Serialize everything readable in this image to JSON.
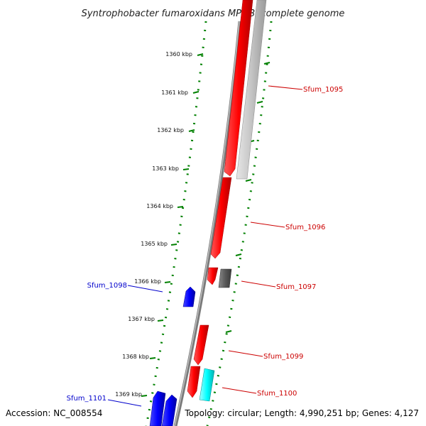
{
  "title": "Syntrophobacter fumaroxidans MPOB, complete genome",
  "footer": {
    "accession": "Accession: NC_008554",
    "topology": "Topology: circular; Length: 4,990,251 bp; Genes: 4,127"
  },
  "colors": {
    "forward_red": "#ff0000",
    "forward_blue": "#0000ff",
    "gray_gene": "#c8c8c8",
    "dark_gray_gene": "#606060",
    "cyan_gene": "#00ffff",
    "tick_green": "#008000",
    "label_red": "#cc0000",
    "label_blue": "#0000cc"
  },
  "ticks": [
    {
      "label": "1360 kbp"
    },
    {
      "label": "1361 kbp"
    },
    {
      "label": "1362 kbp"
    },
    {
      "label": "1363 kbp"
    },
    {
      "label": "1364 kbp"
    },
    {
      "label": "1365 kbp"
    },
    {
      "label": "1366 kbp"
    },
    {
      "label": "1367 kbp"
    },
    {
      "label": "1368 kbp"
    },
    {
      "label": "1369 kbp"
    }
  ],
  "gene_labels": [
    {
      "text": "Sfum_1095",
      "color": "red"
    },
    {
      "text": "Sfum_1096",
      "color": "red"
    },
    {
      "text": "Sfum_1097",
      "color": "red"
    },
    {
      "text": "Sfum_1098",
      "color": "blue"
    },
    {
      "text": "Sfum_1099",
      "color": "red"
    },
    {
      "text": "Sfum_1100",
      "color": "red"
    },
    {
      "text": "Sfum_1101",
      "color": "blue"
    }
  ]
}
